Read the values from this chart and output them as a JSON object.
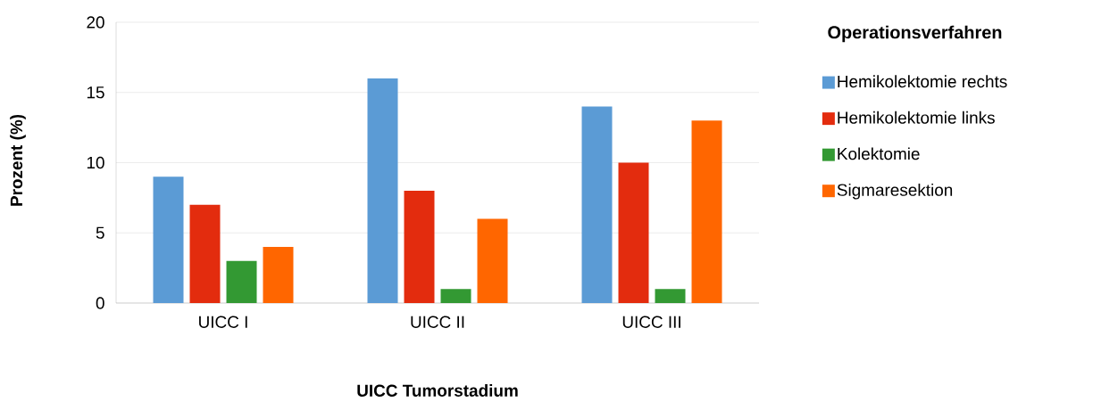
{
  "chart_data": {
    "type": "bar",
    "xlabel": "UICC Tumorstadium",
    "ylabel": "Prozent (%)",
    "legend_title": "Operationsverfahren",
    "categories": [
      "UICC I",
      "UICC II",
      "UICC III"
    ],
    "series": [
      {
        "name": "Hemikolektomie rechts",
        "color": "#5b9bd5",
        "values": [
          9,
          16,
          14
        ]
      },
      {
        "name": "Hemikolektomie links",
        "color": "#e32c0e",
        "values": [
          7,
          8,
          10
        ]
      },
      {
        "name": "Kolektomie",
        "color": "#339933",
        "values": [
          3,
          1,
          1
        ]
      },
      {
        "name": "Sigmaresektion",
        "color": "#ff6600",
        "values": [
          4,
          6,
          13
        ]
      }
    ],
    "ylim": [
      0,
      20
    ],
    "yticks": [
      0,
      5,
      10,
      15,
      20
    ],
    "grid": "y",
    "legend": "right"
  }
}
